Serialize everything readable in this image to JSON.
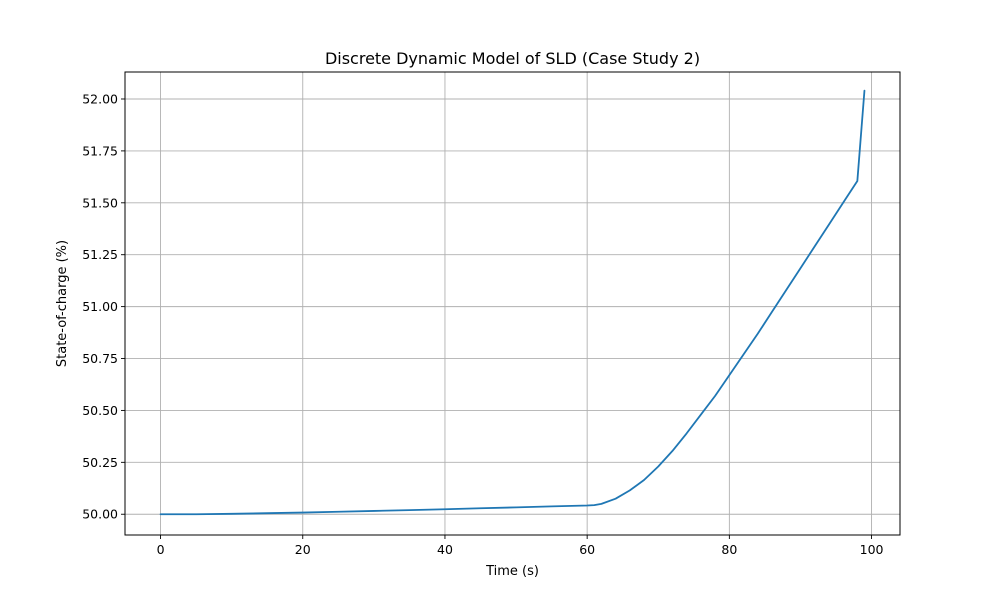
{
  "chart_data": {
    "type": "line",
    "title": "Discrete Dynamic Model of SLD (Case Study 2)",
    "xlabel": "Time (s)",
    "ylabel": "State-of-charge (%)",
    "xlim": [
      -5,
      104
    ],
    "ylim": [
      49.9,
      52.13
    ],
    "xticks": [
      0,
      20,
      40,
      60,
      80,
      100
    ],
    "yticks": [
      50.0,
      50.25,
      50.5,
      50.75,
      51.0,
      51.25,
      51.5,
      51.75,
      52.0
    ],
    "xtick_labels": [
      "0",
      "20",
      "40",
      "60",
      "80",
      "100"
    ],
    "ytick_labels": [
      "50.00",
      "50.25",
      "50.50",
      "50.75",
      "51.00",
      "51.25",
      "51.50",
      "51.75",
      "52.00"
    ],
    "grid": true,
    "legend": false,
    "series": [
      {
        "color": "#1f77b4",
        "x": [
          0,
          5,
          10,
          15,
          20,
          25,
          30,
          35,
          40,
          45,
          50,
          55,
          60,
          61,
          62,
          64,
          66,
          68,
          70,
          72,
          74,
          76,
          78,
          80,
          82,
          84,
          86,
          88,
          90,
          92,
          94,
          96,
          98,
          99
        ],
        "y": [
          50.0,
          50.0,
          50.002,
          50.005,
          50.008,
          50.012,
          50.016,
          50.02,
          50.024,
          50.029,
          50.033,
          50.038,
          50.042,
          50.044,
          50.05,
          50.075,
          50.115,
          50.165,
          50.23,
          50.305,
          50.39,
          50.48,
          50.57,
          50.67,
          50.77,
          50.87,
          50.975,
          51.08,
          51.185,
          51.29,
          51.395,
          51.5,
          51.605,
          52.04
        ]
      }
    ]
  }
}
